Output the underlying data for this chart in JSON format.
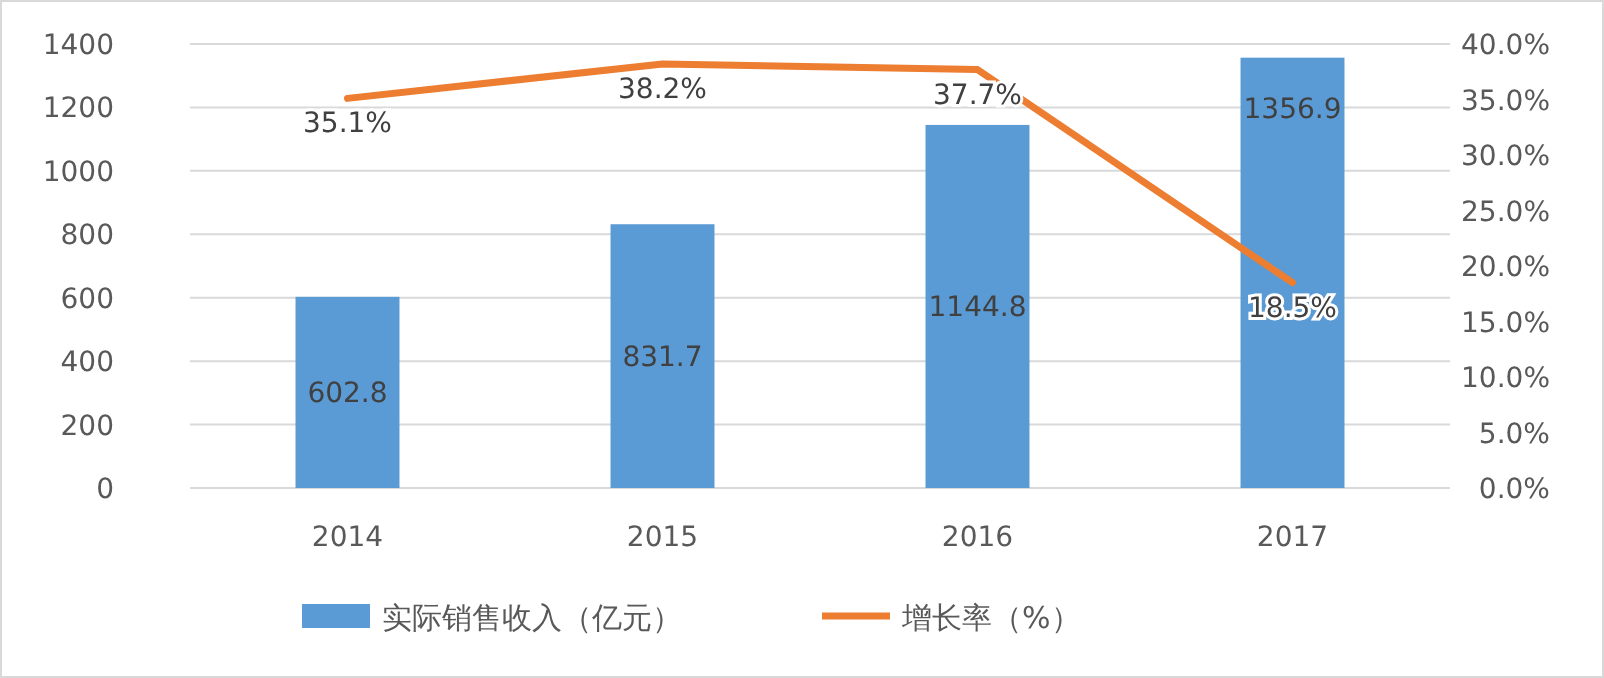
{
  "chart_data": {
    "type": "bar",
    "categories": [
      "2014",
      "2015",
      "2016",
      "2017"
    ],
    "series": [
      {
        "name": "实际销售收入（亿元）",
        "color": "#5b9bd5",
        "values": [
          602.8,
          831.7,
          1144.8,
          1356.9
        ],
        "value_labels": [
          "602.8",
          "831.7",
          "1144.8",
          "1356.9"
        ]
      },
      {
        "name": "增长率（%）",
        "type": "line",
        "axis": "y2",
        "color": "#ed7d31",
        "values": [
          35.1,
          38.2,
          37.7,
          18.5
        ],
        "value_labels": [
          "35.1%",
          "38.2%",
          "37.7%",
          "18.5%"
        ]
      }
    ],
    "ylim": [
      0,
      1400
    ],
    "yticks": [
      0,
      200,
      400,
      600,
      800,
      1000,
      1200,
      1400
    ],
    "y2lim": [
      0,
      40
    ],
    "y2ticks": [
      {
        "value": 0,
        "label": "0.0%"
      },
      {
        "value": 5,
        "label": "5.0%"
      },
      {
        "value": 10,
        "label": "10.0%"
      },
      {
        "value": 15,
        "label": "15.0%"
      },
      {
        "value": 20,
        "label": "20.0%"
      },
      {
        "value": 25,
        "label": "25.0%"
      },
      {
        "value": 30,
        "label": "30.0%"
      },
      {
        "value": 35,
        "label": "35.0%"
      },
      {
        "value": 40,
        "label": "40.0%"
      }
    ],
    "grid": "y",
    "legend": "bottom",
    "marker": "none",
    "line_style": "solid"
  }
}
